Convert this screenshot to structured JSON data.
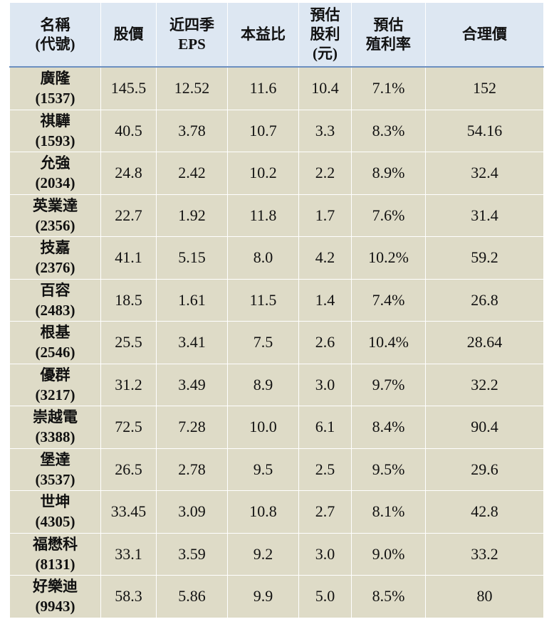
{
  "table": {
    "headers": [
      [
        "名稱",
        "(代號)"
      ],
      [
        "股價"
      ],
      [
        "近四季",
        "EPS"
      ],
      [
        "本益比"
      ],
      [
        "預估",
        "股利",
        "(元)"
      ],
      [
        "預估",
        "殖利率"
      ],
      [
        "合理價"
      ]
    ],
    "rows": [
      {
        "name": "廣隆",
        "code": "(1537)",
        "price": "145.5",
        "eps": "12.52",
        "pe": "11.6",
        "dividend": "10.4",
        "yield": "7.1%",
        "fair": "152"
      },
      {
        "name": "祺驊",
        "code": "(1593)",
        "price": "40.5",
        "eps": "3.78",
        "pe": "10.7",
        "dividend": "3.3",
        "yield": "8.3%",
        "fair": "54.16"
      },
      {
        "name": "允強",
        "code": "(2034)",
        "price": "24.8",
        "eps": "2.42",
        "pe": "10.2",
        "dividend": "2.2",
        "yield": "8.9%",
        "fair": "32.4"
      },
      {
        "name": "英業達",
        "code": "(2356)",
        "price": "22.7",
        "eps": "1.92",
        "pe": "11.8",
        "dividend": "1.7",
        "yield": "7.6%",
        "fair": "31.4"
      },
      {
        "name": "技嘉",
        "code": "(2376)",
        "price": "41.1",
        "eps": "5.15",
        "pe": "8.0",
        "dividend": "4.2",
        "yield": "10.2%",
        "fair": "59.2"
      },
      {
        "name": "百容",
        "code": "(2483)",
        "price": "18.5",
        "eps": "1.61",
        "pe": "11.5",
        "dividend": "1.4",
        "yield": "7.4%",
        "fair": "26.8"
      },
      {
        "name": "根基",
        "code": "(2546)",
        "price": "25.5",
        "eps": "3.41",
        "pe": "7.5",
        "dividend": "2.6",
        "yield": "10.4%",
        "fair": "28.64"
      },
      {
        "name": "優群",
        "code": "(3217)",
        "price": "31.2",
        "eps": "3.49",
        "pe": "8.9",
        "dividend": "3.0",
        "yield": "9.7%",
        "fair": "32.2"
      },
      {
        "name": "崇越電",
        "code": "(3388)",
        "price": "72.5",
        "eps": "7.28",
        "pe": "10.0",
        "dividend": "6.1",
        "yield": "8.4%",
        "fair": "90.4"
      },
      {
        "name": "堡達",
        "code": "(3537)",
        "price": "26.5",
        "eps": "2.78",
        "pe": "9.5",
        "dividend": "2.5",
        "yield": "9.5%",
        "fair": "29.6"
      },
      {
        "name": "世坤",
        "code": "(4305)",
        "price": "33.45",
        "eps": "3.09",
        "pe": "10.8",
        "dividend": "2.7",
        "yield": "8.1%",
        "fair": "42.8"
      },
      {
        "name": "福懋科",
        "code": "(8131)",
        "price": "33.1",
        "eps": "3.59",
        "pe": "9.2",
        "dividend": "3.0",
        "yield": "9.0%",
        "fair": "33.2"
      },
      {
        "name": "好樂迪",
        "code": "(9943)",
        "price": "58.3",
        "eps": "5.86",
        "pe": "9.9",
        "dividend": "5.0",
        "yield": "8.5%",
        "fair": "80"
      }
    ]
  },
  "colors": {
    "header_bg": "#dde7f2",
    "body_bg": "#dedbc7",
    "header_rule": "#6b8fc0"
  }
}
